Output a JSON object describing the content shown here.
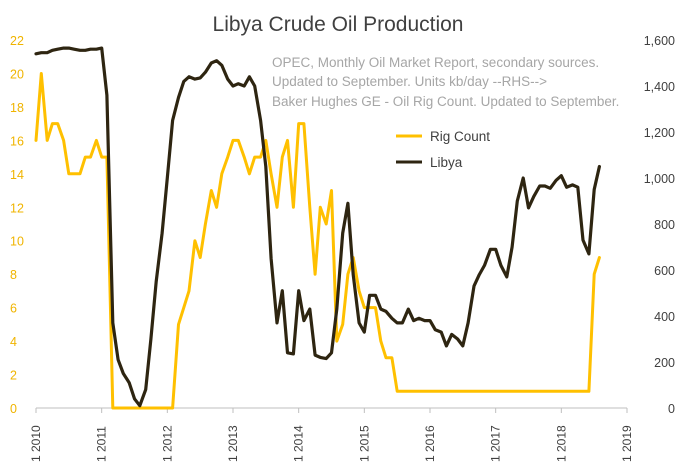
{
  "chart_data": {
    "type": "line",
    "title": "Libya Crude Oil Production",
    "annotation_lines": [
      "OPEC, Monthly Oil Market Report, secondary sources.",
      "Updated to September.  Units kb/day --RHS-->",
      "Baker Hughes GE - Oil Rig Count. Updated to September."
    ],
    "x_ticks": [
      "1 2010",
      "1 2011",
      "1 2012",
      "1 2013",
      "1 2014",
      "1 2015",
      "1 2016",
      "1 2017",
      "1 2018",
      "1 2019"
    ],
    "x_range": [
      2010.0,
      2019.0
    ],
    "y_left": {
      "range": [
        0,
        22
      ],
      "ticks": [
        "0",
        "2",
        "4",
        "6",
        "8",
        "10",
        "12",
        "14",
        "16",
        "18",
        "20",
        "22"
      ]
    },
    "y_right": {
      "range": [
        0,
        1600
      ],
      "ticks": [
        "0",
        "200",
        "400",
        "600",
        "800",
        "1,000",
        "1,200",
        "1,400",
        "1,600"
      ]
    },
    "grid": false,
    "legend_position": "center-right",
    "colors": {
      "rig": "#ffc000",
      "libya": "#2e2511",
      "left_axis_text": "#f0b400",
      "right_axis_text": "#404040",
      "note": "#a6a6a6"
    },
    "series": [
      {
        "name": "Rig Count",
        "axis": "left",
        "points": [
          [
            2010.0,
            16
          ],
          [
            2010.08,
            20
          ],
          [
            2010.17,
            16
          ],
          [
            2010.25,
            17
          ],
          [
            2010.33,
            17
          ],
          [
            2010.42,
            16
          ],
          [
            2010.5,
            14
          ],
          [
            2010.58,
            14
          ],
          [
            2010.67,
            14
          ],
          [
            2010.75,
            15
          ],
          [
            2010.83,
            15
          ],
          [
            2010.92,
            16
          ],
          [
            2011.0,
            15
          ],
          [
            2011.08,
            15
          ],
          [
            2011.17,
            0
          ],
          [
            2011.25,
            0
          ],
          [
            2011.5,
            0
          ],
          [
            2011.75,
            0
          ],
          [
            2012.0,
            0
          ],
          [
            2012.08,
            0
          ],
          [
            2012.17,
            5
          ],
          [
            2012.25,
            6
          ],
          [
            2012.33,
            7
          ],
          [
            2012.42,
            10
          ],
          [
            2012.5,
            9
          ],
          [
            2012.58,
            11
          ],
          [
            2012.67,
            13
          ],
          [
            2012.75,
            12
          ],
          [
            2012.83,
            14
          ],
          [
            2012.92,
            15
          ],
          [
            2013.0,
            16
          ],
          [
            2013.08,
            16
          ],
          [
            2013.17,
            15
          ],
          [
            2013.25,
            14
          ],
          [
            2013.33,
            15
          ],
          [
            2013.42,
            15
          ],
          [
            2013.5,
            16
          ],
          [
            2013.58,
            14
          ],
          [
            2013.67,
            12
          ],
          [
            2013.75,
            15
          ],
          [
            2013.83,
            16
          ],
          [
            2013.92,
            12
          ],
          [
            2014.0,
            17
          ],
          [
            2014.08,
            17
          ],
          [
            2014.17,
            12
          ],
          [
            2014.25,
            8
          ],
          [
            2014.33,
            12
          ],
          [
            2014.42,
            11
          ],
          [
            2014.5,
            13
          ],
          [
            2014.58,
            4
          ],
          [
            2014.67,
            5
          ],
          [
            2014.75,
            8
          ],
          [
            2014.83,
            9
          ],
          [
            2014.92,
            7
          ],
          [
            2015.0,
            6
          ],
          [
            2015.08,
            6
          ],
          [
            2015.17,
            6
          ],
          [
            2015.25,
            4
          ],
          [
            2015.33,
            3
          ],
          [
            2015.42,
            3
          ],
          [
            2015.5,
            1
          ],
          [
            2016.0,
            1
          ],
          [
            2016.5,
            1
          ],
          [
            2017.0,
            1
          ],
          [
            2017.5,
            1
          ],
          [
            2018.0,
            1
          ],
          [
            2018.33,
            1
          ],
          [
            2018.42,
            1
          ],
          [
            2018.5,
            8
          ],
          [
            2018.58,
            9
          ]
        ]
      },
      {
        "name": "Libya",
        "axis": "right",
        "points": [
          [
            2010.0,
            1540
          ],
          [
            2010.08,
            1545
          ],
          [
            2010.17,
            1545
          ],
          [
            2010.25,
            1555
          ],
          [
            2010.33,
            1560
          ],
          [
            2010.42,
            1565
          ],
          [
            2010.5,
            1565
          ],
          [
            2010.58,
            1560
          ],
          [
            2010.67,
            1555
          ],
          [
            2010.75,
            1555
          ],
          [
            2010.83,
            1560
          ],
          [
            2010.92,
            1560
          ],
          [
            2011.0,
            1565
          ],
          [
            2011.08,
            1360
          ],
          [
            2011.17,
            370
          ],
          [
            2011.25,
            210
          ],
          [
            2011.33,
            150
          ],
          [
            2011.42,
            110
          ],
          [
            2011.5,
            40
          ],
          [
            2011.58,
            10
          ],
          [
            2011.67,
            80
          ],
          [
            2011.75,
            300
          ],
          [
            2011.83,
            550
          ],
          [
            2011.92,
            760
          ],
          [
            2012.0,
            1000
          ],
          [
            2012.08,
            1250
          ],
          [
            2012.17,
            1350
          ],
          [
            2012.25,
            1420
          ],
          [
            2012.33,
            1440
          ],
          [
            2012.42,
            1430
          ],
          [
            2012.5,
            1435
          ],
          [
            2012.58,
            1460
          ],
          [
            2012.67,
            1500
          ],
          [
            2012.75,
            1510
          ],
          [
            2012.83,
            1490
          ],
          [
            2012.92,
            1430
          ],
          [
            2013.0,
            1400
          ],
          [
            2013.08,
            1410
          ],
          [
            2013.17,
            1400
          ],
          [
            2013.25,
            1440
          ],
          [
            2013.33,
            1400
          ],
          [
            2013.42,
            1250
          ],
          [
            2013.5,
            1050
          ],
          [
            2013.58,
            650
          ],
          [
            2013.67,
            370
          ],
          [
            2013.75,
            510
          ],
          [
            2013.83,
            240
          ],
          [
            2013.92,
            235
          ],
          [
            2014.0,
            510
          ],
          [
            2014.08,
            380
          ],
          [
            2014.17,
            430
          ],
          [
            2014.25,
            230
          ],
          [
            2014.33,
            220
          ],
          [
            2014.42,
            215
          ],
          [
            2014.5,
            240
          ],
          [
            2014.58,
            430
          ],
          [
            2014.67,
            760
          ],
          [
            2014.75,
            890
          ],
          [
            2014.83,
            580
          ],
          [
            2014.92,
            370
          ],
          [
            2015.0,
            330
          ],
          [
            2015.08,
            490
          ],
          [
            2015.17,
            490
          ],
          [
            2015.25,
            430
          ],
          [
            2015.33,
            420
          ],
          [
            2015.42,
            390
          ],
          [
            2015.5,
            370
          ],
          [
            2015.58,
            370
          ],
          [
            2015.67,
            430
          ],
          [
            2015.75,
            380
          ],
          [
            2015.83,
            390
          ],
          [
            2015.92,
            380
          ],
          [
            2016.0,
            380
          ],
          [
            2016.08,
            340
          ],
          [
            2016.17,
            330
          ],
          [
            2016.25,
            270
          ],
          [
            2016.33,
            320
          ],
          [
            2016.42,
            300
          ],
          [
            2016.5,
            270
          ],
          [
            2016.58,
            370
          ],
          [
            2016.67,
            530
          ],
          [
            2016.75,
            580
          ],
          [
            2016.83,
            620
          ],
          [
            2016.92,
            690
          ],
          [
            2017.0,
            690
          ],
          [
            2017.08,
            620
          ],
          [
            2017.17,
            570
          ],
          [
            2017.25,
            700
          ],
          [
            2017.33,
            900
          ],
          [
            2017.42,
            1000
          ],
          [
            2017.5,
            870
          ],
          [
            2017.58,
            920
          ],
          [
            2017.67,
            965
          ],
          [
            2017.75,
            965
          ],
          [
            2017.83,
            955
          ],
          [
            2017.92,
            990
          ],
          [
            2018.0,
            1010
          ],
          [
            2018.08,
            960
          ],
          [
            2018.17,
            970
          ],
          [
            2018.25,
            960
          ],
          [
            2018.33,
            730
          ],
          [
            2018.42,
            670
          ],
          [
            2018.5,
            950
          ],
          [
            2018.58,
            1050
          ]
        ]
      }
    ]
  }
}
